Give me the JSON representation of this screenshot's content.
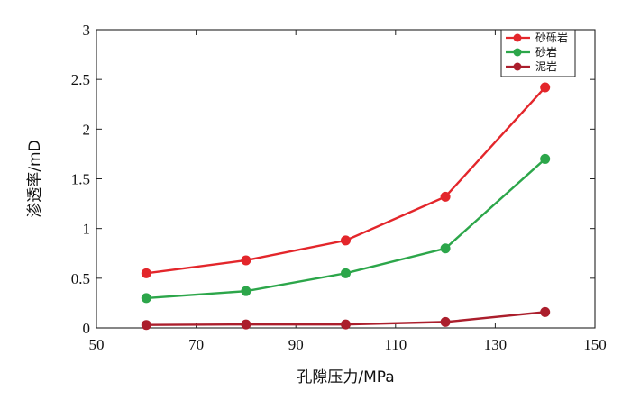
{
  "chart_data": {
    "type": "line",
    "title": "",
    "xlabel": "孔隙压力/MPa",
    "ylabel": "渗透率/mD",
    "xlim": [
      50,
      150
    ],
    "ylim": [
      0,
      3
    ],
    "xticks": [
      50,
      70,
      90,
      110,
      130,
      150
    ],
    "yticks": [
      0,
      0.5,
      1,
      1.5,
      2,
      2.5,
      3
    ],
    "xtick_labels": [
      "50",
      "70",
      "90",
      "110",
      "130",
      "150"
    ],
    "ytick_labels": [
      "0",
      "0.5",
      "1",
      "1.5",
      "2",
      "2.5",
      "3"
    ],
    "grid": false,
    "legend_position": "top-right",
    "x": [
      60,
      80,
      100,
      120,
      140
    ],
    "series": [
      {
        "name": "砂砾岩",
        "color": "#e3262b",
        "values": [
          0.55,
          0.68,
          0.88,
          1.32,
          2.42
        ]
      },
      {
        "name": "砂岩",
        "color": "#2ca64a",
        "values": [
          0.3,
          0.37,
          0.55,
          0.8,
          1.7
        ]
      },
      {
        "name": "泥岩",
        "color": "#ab1e2c",
        "values": [
          0.03,
          0.035,
          0.035,
          0.06,
          0.16
        ]
      }
    ]
  }
}
